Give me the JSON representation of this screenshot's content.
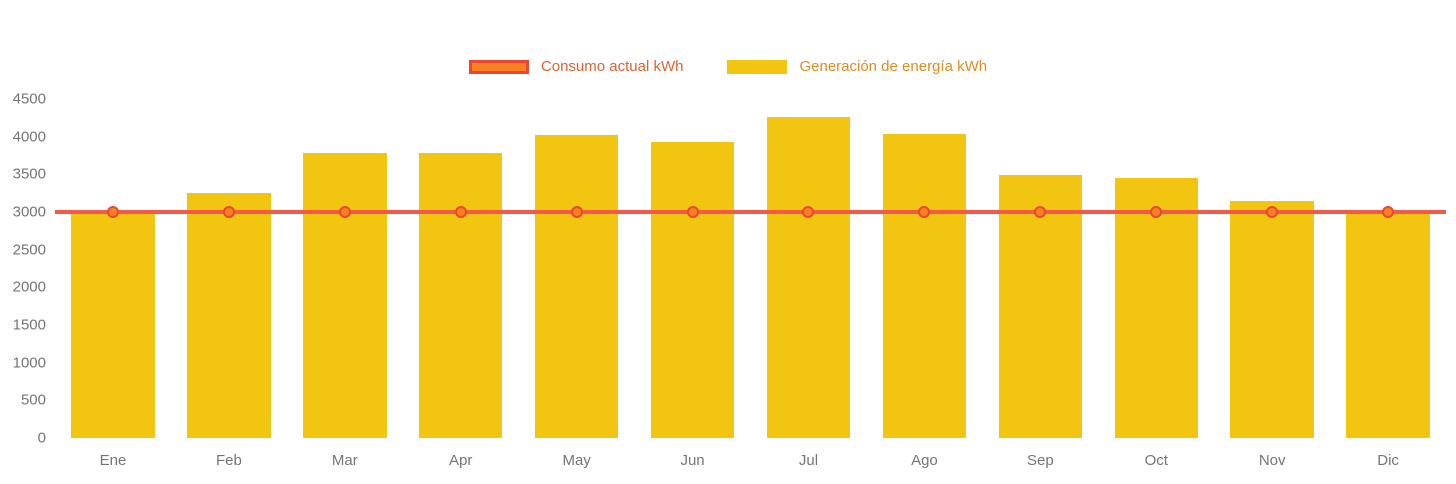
{
  "legend": {
    "items": [
      {
        "label": "Consumo actual kWh",
        "type": "line",
        "fill": "#f58220",
        "border": "#ee4431"
      },
      {
        "label": "Generación de energía kWh",
        "type": "bar",
        "fill": "#f2c511"
      }
    ]
  },
  "chart_data": {
    "type": "bar",
    "subtype": "bar-with-line-overlay",
    "categories": [
      "Ene",
      "Feb",
      "Mar",
      "Apr",
      "May",
      "Jun",
      "Jul",
      "Ago",
      "Sep",
      "Oct",
      "Nov",
      "Dic"
    ],
    "series": [
      {
        "name": "Generación de energía kWh",
        "type": "bar",
        "color": "#f2c511",
        "values": [
          2980,
          3250,
          3780,
          3790,
          4020,
          3930,
          4260,
          4030,
          3490,
          3450,
          3150,
          2980
        ]
      },
      {
        "name": "Consumo actual kWh",
        "type": "line",
        "color": "#f2594b",
        "point_border": "#ee4431",
        "point_fill": "#f58220",
        "values": [
          3000,
          3000,
          3000,
          3000,
          3000,
          3000,
          3000,
          3000,
          3000,
          3000,
          3000,
          3000
        ]
      }
    ],
    "title": "",
    "xlabel": "",
    "ylabel": "",
    "yticks": [
      0,
      500,
      1000,
      1500,
      2000,
      2500,
      3000,
      3500,
      4000,
      4500
    ],
    "ylim": [
      0,
      4500
    ],
    "grid": false,
    "legend_position": "top-center"
  }
}
